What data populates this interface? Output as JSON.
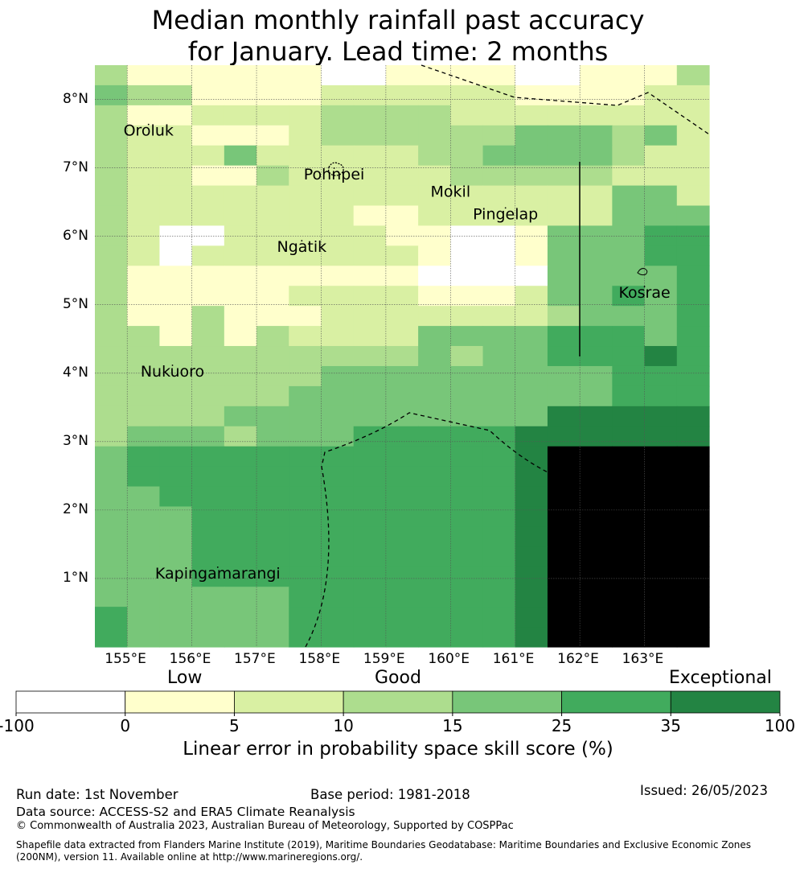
{
  "title": {
    "line1": "Median monthly rainfall past accuracy",
    "line2": "for January. Lead time: 2 months"
  },
  "map": {
    "lon_range": [
      154.5,
      164.0
    ],
    "lat_range": [
      -0.0,
      8.5
    ],
    "lat_ticks": [
      {
        "value": 8,
        "label": "8°N"
      },
      {
        "value": 7,
        "label": "7°N"
      },
      {
        "value": 6,
        "label": "6°N"
      },
      {
        "value": 5,
        "label": "5°N"
      },
      {
        "value": 4,
        "label": "4°N"
      },
      {
        "value": 3,
        "label": "3°N"
      },
      {
        "value": 2,
        "label": "2°N"
      },
      {
        "value": 1,
        "label": "1°N"
      }
    ],
    "lon_ticks": [
      {
        "value": 155,
        "label": "155°E"
      },
      {
        "value": 156,
        "label": "156°E"
      },
      {
        "value": 157,
        "label": "157°E"
      },
      {
        "value": 158,
        "label": "158°E"
      },
      {
        "value": 159,
        "label": "159°E"
      },
      {
        "value": 160,
        "label": "160°E"
      },
      {
        "value": 161,
        "label": "161°E"
      },
      {
        "value": 162,
        "label": "162°E"
      },
      {
        "value": 163,
        "label": "163°E"
      }
    ],
    "palette": [
      "#ffffff",
      "#ffffcc",
      "#d9f0a3",
      "#addd8e",
      "#78c679",
      "#41ab5d",
      "#238443"
    ],
    "grid_rows_top_to_bottom": [
      "3111111001111001113",
      "4331111222222111122",
      "3112222333322222222",
      "3221112333333444342",
      "3222422222334444322",
      "3221132222233333222",
      "3222222222222222442",
      "3222222211222222444",
      "3200222221100144455",
      "3202222222100144455",
      "3111111111000044445",
      "3111112222111244545",
      "3113111222222234445",
      "3313132222444455545",
      "3333333333434455565",
      "3333333444444444555",
      "3333334444444444555",
      "3333444444444466666",
      "3444344455555666666",
      "4555555555555677777",
      "4555555555555677777",
      "4455555555555677777",
      "4445555555555677777",
      "4445555555555677777",
      "4445555555555677777",
      "4445555555555677777",
      "4444445555555677777",
      "5444445555555677777",
      "5444445555555677777"
    ],
    "places": [
      {
        "name": "Oroluk",
        "lon": 155.33,
        "lat": 7.47
      },
      {
        "name": "Pohnpei",
        "lon": 158.2,
        "lat": 6.83
      },
      {
        "name": "Mokil",
        "lon": 160.0,
        "lat": 6.58
      },
      {
        "name": "Pingelap",
        "lon": 160.85,
        "lat": 6.25
      },
      {
        "name": "Ngatik",
        "lon": 157.7,
        "lat": 5.77
      },
      {
        "name": "Kosrae",
        "lon": 163.0,
        "lat": 5.1
      },
      {
        "name": "Nukuoro",
        "lon": 155.7,
        "lat": 3.95
      },
      {
        "name": "Kapingamarangi",
        "lon": 156.4,
        "lat": 1.0
      }
    ]
  },
  "legend": {
    "categories": [
      "Low",
      "Good",
      "Exceptional"
    ],
    "ticks": [
      "-100",
      "0",
      "5",
      "10",
      "15",
      "25",
      "35",
      "100"
    ],
    "colors": [
      "#ffffff",
      "#ffffcc",
      "#d9f0a3",
      "#addd8e",
      "#78c679",
      "#41ab5d",
      "#238443"
    ],
    "label": "Linear error in probability space skill score (%)"
  },
  "footer": {
    "run_date": "Run date: 1st November",
    "base_period": "Base period: 1981-2018",
    "issued": "Issued: 26/05/2023",
    "data_source": "Data source: ACCESS-S2 and ERA5 Climate Reanalysis",
    "copyright": "© Commonwealth of Australia 2023, Australian Bureau of Meteorology, Supported by COSPPac",
    "shapefile": "Shapefile data extracted from Flanders Marine Institute (2019), Maritime Boundaries Geodatabase: Maritime Boundaries and Exclusive Economic Zones (200NM), version 11. Available online at http://www.marineregions.org/."
  }
}
